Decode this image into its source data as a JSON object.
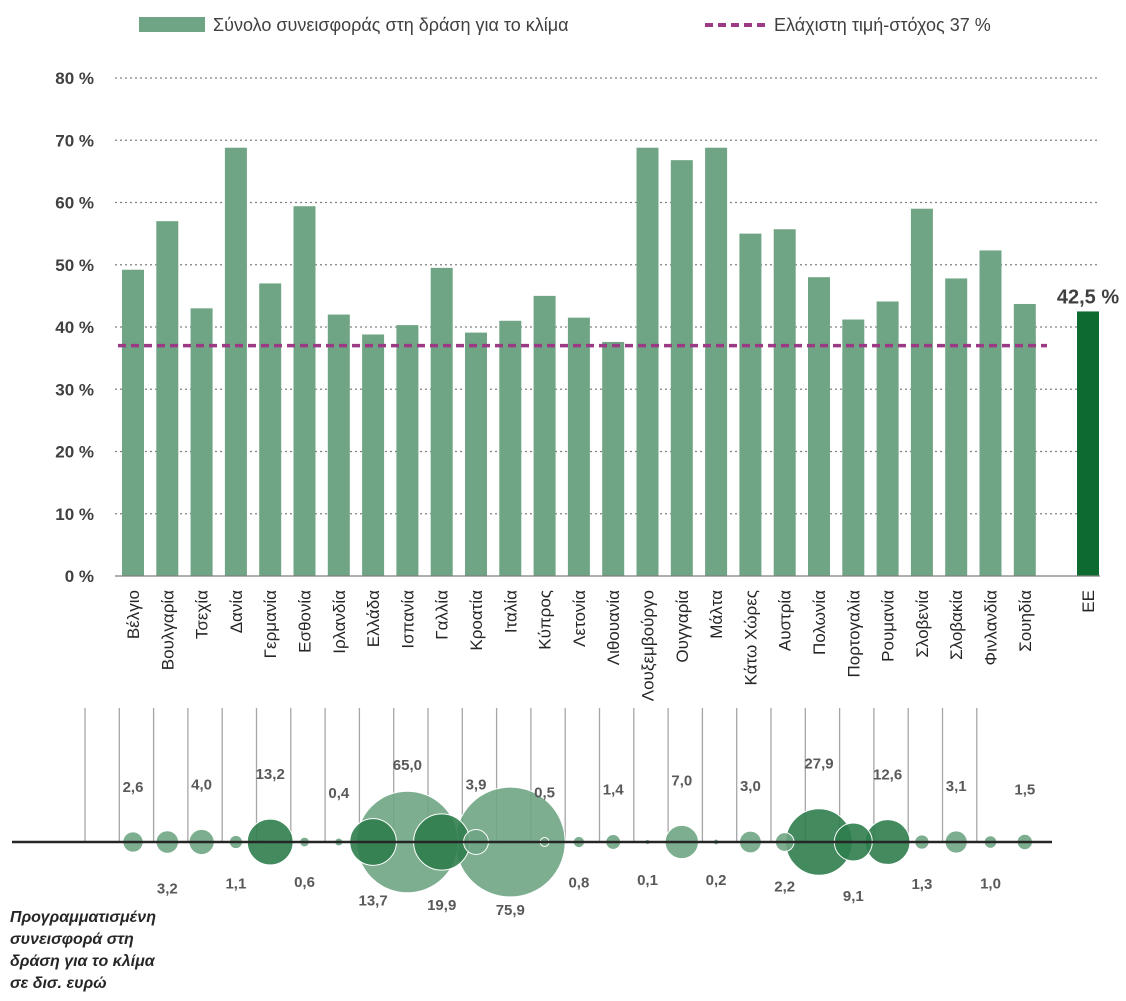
{
  "chart_data": [
    {
      "type": "bar",
      "legend": {
        "bar_label": "Σύνολο συνεισφοράς στη δράση για το κλίμα",
        "target_label": "Ελάχιστη τιμή-στόχος 37 %",
        "placement": "top"
      },
      "y_ticks": [
        "0 %",
        "10 %",
        "20 %",
        "30 %",
        "40 %",
        "50 %",
        "60 %",
        "70 %",
        "80 %"
      ],
      "ylim": [
        0,
        80
      ],
      "grid": true,
      "target": 37,
      "categories": [
        "Βέλγιο",
        "Βουλγαρία",
        "Τσεχία",
        "Δανία",
        "Γερμανία",
        "Εσθονία",
        "Ιρλανδία",
        "Ελλάδα",
        "Ισπανία",
        "Γαλλία",
        "Κροατία",
        "Ιταλία",
        "Κύπρος",
        "Λετονία",
        "Λιθουανία",
        "Λουξεμβούργο",
        "Ουγγαρία",
        "Μάλτα",
        "Κάτω Χώρες",
        "Αυστρία",
        "Πολωνία",
        "Πορτογαλία",
        "Ρουμανία",
        "Σλοβενία",
        "Σλοβακία",
        "Φινλανδία",
        "Σουηδία"
      ],
      "values": [
        49.2,
        57.0,
        43.0,
        68.8,
        47.0,
        59.4,
        42.0,
        38.8,
        40.3,
        49.5,
        39.1,
        41.0,
        45.0,
        41.5,
        37.6,
        68.8,
        66.8,
        68.8,
        55.0,
        55.7,
        48.0,
        41.2,
        44.1,
        59.0,
        47.8,
        52.3,
        43.7
      ],
      "eu": {
        "category": "ΕΕ",
        "value": 42.5,
        "label": "42,5 %"
      },
      "colors": {
        "bar": "#6fa584",
        "eu_bar": "#0e6b2f",
        "target": "#9b3a85",
        "grid": "#808080"
      }
    },
    {
      "type": "scatter",
      "note": [
        "Προγραμματισμένη",
        "συνεισφορά στη",
        "δράση για το κλίμα",
        "σε δισ. ευρώ"
      ],
      "values": [
        2.6,
        3.2,
        4.0,
        1.1,
        13.2,
        0.6,
        0.4,
        13.7,
        65.0,
        19.9,
        3.9,
        75.9,
        0.5,
        0.8,
        1.4,
        0.1,
        7.0,
        0.2,
        3.0,
        2.2,
        27.9,
        9.1,
        12.6,
        1.3,
        3.1,
        1.0,
        1.5
      ],
      "labels": [
        "2,6",
        "3,2",
        "4,0",
        "1,1",
        "13,2",
        "0,6",
        "0,4",
        "13,7",
        "65,0",
        "19,9",
        "3,9",
        "75,9",
        "0,5",
        "0,8",
        "1,4",
        "0,1",
        "7,0",
        "0,2",
        "3,0",
        "2,2",
        "27,9",
        "9,1",
        "12,6",
        "1,3",
        "3,1",
        "1,0",
        "1,5"
      ],
      "colors": {
        "bubble": "#6fa584",
        "bubble_dark": "#2f7d4c",
        "axis": "#262626",
        "leader": "#a6a6a6"
      }
    }
  ]
}
